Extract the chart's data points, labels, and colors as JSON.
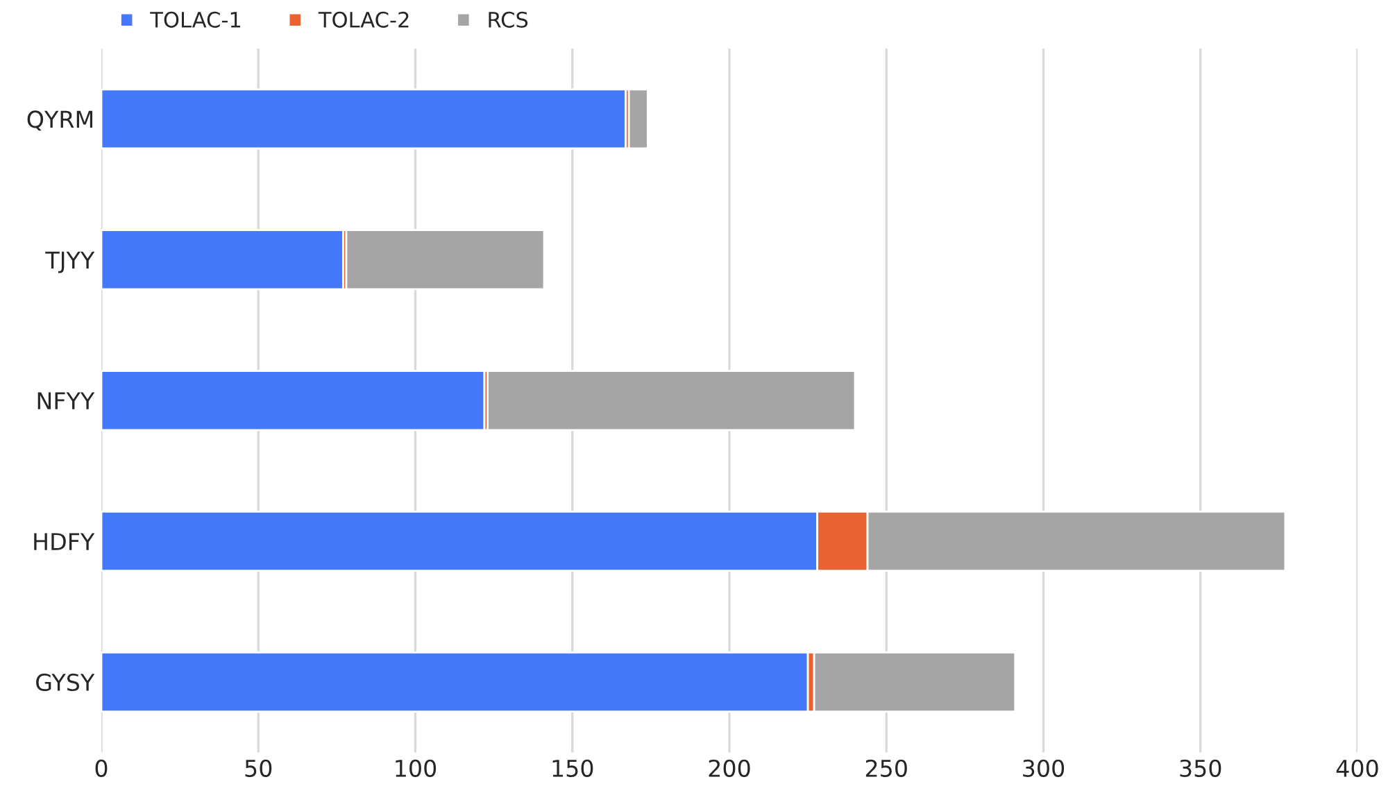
{
  "chart_data": {
    "type": "bar",
    "orientation": "horizontal",
    "stacked": true,
    "categories": [
      "QYRM",
      "TJYY",
      "NFYY",
      "HDFY",
      "GYSY"
    ],
    "series": [
      {
        "name": "TOLAC-1",
        "color": "#4479fb",
        "values": [
          167,
          77,
          122,
          228,
          225
        ]
      },
      {
        "name": "TOLAC-2",
        "color": "#eb6232",
        "values": [
          1,
          1,
          1,
          16,
          2
        ]
      },
      {
        "name": "RCS",
        "color": "#a5a5a5",
        "values": [
          6,
          63,
          117,
          133,
          64
        ]
      }
    ],
    "xlim": [
      0,
      400
    ],
    "xticks": [
      0,
      50,
      100,
      150,
      200,
      250,
      300,
      350,
      400
    ],
    "grid": "x",
    "legend": "top left"
  }
}
